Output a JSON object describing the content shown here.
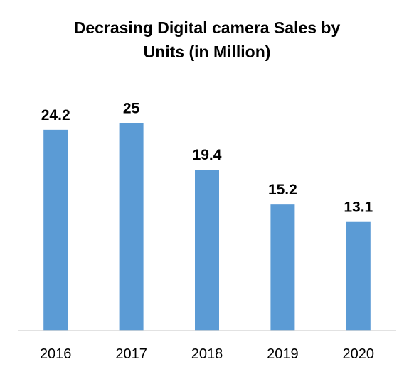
{
  "chart_data": {
    "type": "bar",
    "title_lines": [
      "Decrasing Digital camera Sales by",
      "Units (in Million)"
    ],
    "categories": [
      "2016",
      "2017",
      "2018",
      "2019",
      "2020"
    ],
    "values": [
      24.2,
      25,
      19.4,
      15.2,
      13.1
    ],
    "data_labels": [
      "24.2",
      "25",
      "19.4",
      "15.2",
      "13.1"
    ],
    "ylim": [
      0,
      30
    ],
    "grid": false,
    "legend": "none",
    "bar_color": "#5B9BD5",
    "axis_color": "#D9D9D9"
  }
}
